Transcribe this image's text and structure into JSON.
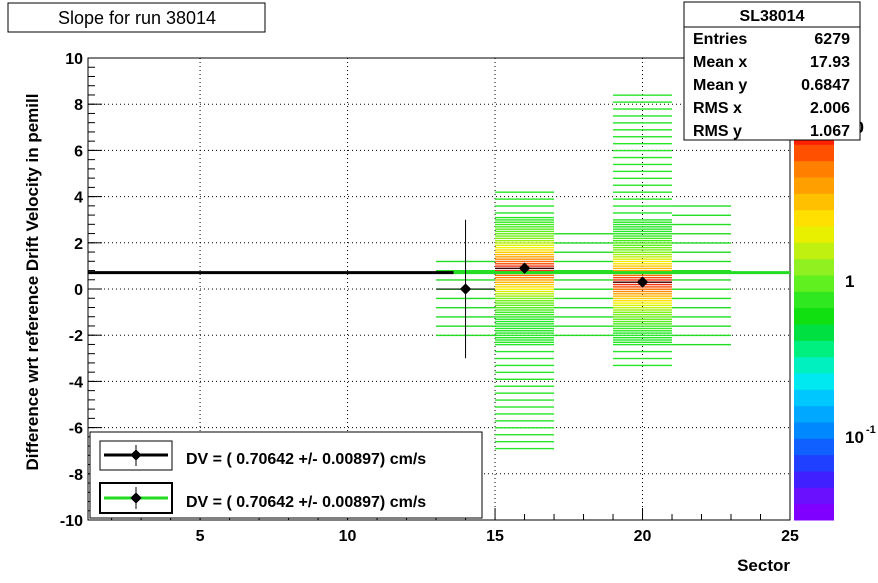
{
  "title": "Slope for run 38014",
  "xlabel": "Sector",
  "ylabel": "Difference wrt reference Drift Velocity in pemill",
  "stats": {
    "name": "SL38014",
    "rows": [
      {
        "label": "Entries",
        "value": "6279"
      },
      {
        "label": "Mean x",
        "value": "17.93"
      },
      {
        "label": "Mean y",
        "value": "0.6847"
      },
      {
        "label": "RMS x",
        "value": "2.006"
      },
      {
        "label": "RMS y",
        "value": "1.067"
      }
    ]
  },
  "legend": [
    {
      "text": "DV = (   0.70642 +/-    0.00897) cm/s",
      "color": "#000000"
    },
    {
      "text": "DV = (   0.70642 +/-    0.00897) cm/s",
      "color": "#22dd22"
    }
  ],
  "palette_labels": [
    "10",
    "1",
    "10"
  ],
  "palette_exponent": "-1",
  "chart_data": {
    "type": "heatmap",
    "title": "Slope for run 38014",
    "xlabel": "Sector",
    "ylabel": "Difference wrt reference Drift Velocity in pemill",
    "xlim": [
      1.2,
      25
    ],
    "ylim": [
      -10,
      10
    ],
    "x_ticks": [
      "5",
      "10",
      "15",
      "20",
      "25"
    ],
    "y_ticks": [
      "-10",
      "-8",
      "-6",
      "-4",
      "-2",
      "0",
      "2",
      "4",
      "6",
      "8",
      "10"
    ],
    "grid": true,
    "log_z": true,
    "legend_position": "bottom-left",
    "stats_position": "top-right",
    "points": [
      {
        "x": 14,
        "y": 0.0,
        "yerr": 3.0
      },
      {
        "x": 16,
        "y": 0.9,
        "yerr": 0
      },
      {
        "x": 20,
        "y": 0.3,
        "yerr": 0
      }
    ],
    "fits": [
      {
        "x": [
          1.2,
          13.6
        ],
        "y": 0.70642,
        "color": "#000000"
      },
      {
        "x": [
          13.6,
          25
        ],
        "y": 0.70642,
        "color": "#22dd22"
      }
    ],
    "clusters": [
      {
        "x": [
          13,
          15
        ],
        "y_range": [
          -2.2,
          1.2
        ],
        "level": "low"
      },
      {
        "x": [
          15,
          17
        ],
        "y_range": [
          -7.0,
          4.3
        ],
        "level": "high",
        "peak_y": 0.9
      },
      {
        "x": [
          17,
          19
        ],
        "y_range": [
          -2.0,
          2.4
        ],
        "level": "low"
      },
      {
        "x": [
          19,
          21
        ],
        "y_range": [
          -3.5,
          8.6
        ],
        "level": "high",
        "peak_y": 0.3
      },
      {
        "x": [
          21,
          23
        ],
        "y_range": [
          -2.5,
          3.6
        ],
        "level": "low"
      }
    ]
  }
}
